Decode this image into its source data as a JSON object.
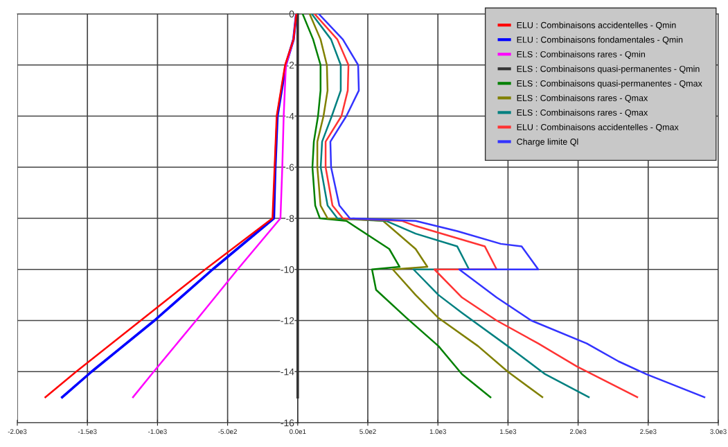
{
  "chart_data": {
    "type": "line",
    "xlim": [
      -2000,
      3000
    ],
    "xticks": [
      {
        "value": -2000,
        "label": "-2.0e3"
      },
      {
        "value": -1500,
        "label": "-1.5e3"
      },
      {
        "value": -1000,
        "label": "-1.0e3"
      },
      {
        "value": -500,
        "label": "-5.0e2"
      },
      {
        "value": 0,
        "label": "0.0e1"
      },
      {
        "value": 500,
        "label": "5.0e2"
      },
      {
        "value": 1000,
        "label": "1.0e3"
      },
      {
        "value": 1500,
        "label": "1.5e3"
      },
      {
        "value": 2000,
        "label": "2.0e3"
      },
      {
        "value": 2500,
        "label": "2.5e3"
      },
      {
        "value": 3000,
        "label": "3.0e3"
      }
    ],
    "ylim": [
      -16,
      0
    ],
    "yticks": [
      0,
      -2,
      -4,
      -6,
      -8,
      -10,
      -12,
      -14,
      -16
    ],
    "grid": true,
    "legend": "top right",
    "marker": "none",
    "line_style": "solid",
    "series": [
      {
        "name": "ELU : Combinaisons accidentelles - Qmin",
        "color": "#ff0000",
        "x": [
          -10,
          -30,
          -90,
          -150,
          -165,
          -180,
          -660,
          -1120,
          -1580,
          -1800
        ],
        "values": [
          0,
          -1,
          -2,
          -4,
          -6,
          -8,
          -10,
          -12,
          -14,
          -15
        ]
      },
      {
        "name": "ELU : Combinaisons fondamentales - Qmin",
        "color": "#0000ff",
        "x": [
          -10,
          -30,
          -85,
          -145,
          -160,
          -170,
          -607,
          -1022,
          -1470,
          -1680
        ],
        "values": [
          0,
          -1,
          -2,
          -4,
          -6,
          -8,
          -10,
          -12,
          -14,
          -15
        ]
      },
      {
        "name": "ELS : Combinaisons rares - Qmin",
        "color": "#ff00ff",
        "x": [
          -10,
          -30,
          -84,
          -100,
          -110,
          -123,
          -429,
          -725,
          -1027,
          -1175
        ],
        "values": [
          0,
          -1,
          -2,
          -4,
          -6,
          -8,
          -10,
          -12,
          -14,
          -15
        ]
      },
      {
        "name": "ELS : Combinaisons quasi-permanentes - Qmin",
        "color": "#333333",
        "x": [
          0,
          0
        ],
        "values": [
          0,
          -15
        ]
      },
      {
        "name": "ELS : Combinaisons quasi-permanentes - Qmax",
        "color": "#008000",
        "x": [
          35,
          110,
          163,
          163,
          145,
          115,
          105,
          125,
          158,
          347,
          653,
          727,
          530,
          559,
          777,
          1004,
          1172,
          1375
        ],
        "values": [
          0,
          -1,
          -2,
          -3,
          -4,
          -5,
          -6,
          -7.5,
          -8,
          -8.1,
          -9.2,
          -9.9,
          -10,
          -10.8,
          -11.9,
          -13,
          -14.1,
          -15
        ]
      },
      {
        "name": "ELS : Combinaisons rares - Qmax",
        "color": "#808000",
        "x": [
          85,
          163,
          208,
          213,
          184,
          140,
          140,
          163,
          213,
          609,
          841,
          925,
          678,
          841,
          1004,
          1286,
          1498,
          1745
        ],
        "values": [
          0,
          -1,
          -2,
          -3,
          -4,
          -5,
          -6,
          -7.5,
          -8,
          -8.1,
          -9.2,
          -9.9,
          -10,
          -11,
          -11.9,
          -13,
          -14,
          -15
        ]
      },
      {
        "name": "ELS : Combinaisons rares - Qmax",
        "color": "#008080",
        "x": [
          100,
          238,
          307,
          307,
          243,
          174,
          164,
          213,
          283,
          629,
          841,
          1138,
          1222,
          826,
          1004,
          1172,
          1498,
          1765,
          2076
        ],
        "values": [
          0,
          -1,
          -2,
          -3,
          -4,
          -5,
          -6,
          -7.5,
          -8,
          -8.1,
          -8.6,
          -9.1,
          -10,
          -10,
          -11,
          -11.7,
          -13,
          -14.1,
          -15
        ]
      },
      {
        "name": "ELU : Combinaisons accidentelles - Qmax",
        "color": "#ff3333",
        "x": [
          120,
          283,
          362,
          357,
          312,
          199,
          199,
          248,
          322,
          742,
          841,
          1335,
          1419,
          975,
          1172,
          1419,
          1716,
          1992,
          2422
        ],
        "values": [
          0,
          -1,
          -2,
          -3,
          -4,
          -5,
          -6,
          -7.5,
          -8,
          -8.1,
          -8.3,
          -9.1,
          -10,
          -10,
          -11.1,
          -12,
          -12.9,
          -13.8,
          -15
        ]
      },
      {
        "name": "Charge limite Ql",
        "color": "#3333ff",
        "x": [
          150,
          322,
          431,
          436,
          347,
          233,
          238,
          297,
          372,
          841,
          1138,
          1449,
          1597,
          1716,
          1152,
          1419,
          1666,
          2062,
          2289,
          2486,
          2901
        ],
        "values": [
          0,
          -1,
          -2,
          -3,
          -4,
          -5,
          -6,
          -7.5,
          -8,
          -8.1,
          -8.5,
          -9,
          -9.1,
          -10,
          -10,
          -11.1,
          -12,
          -12.9,
          -13.6,
          -14.1,
          -15
        ]
      }
    ]
  }
}
